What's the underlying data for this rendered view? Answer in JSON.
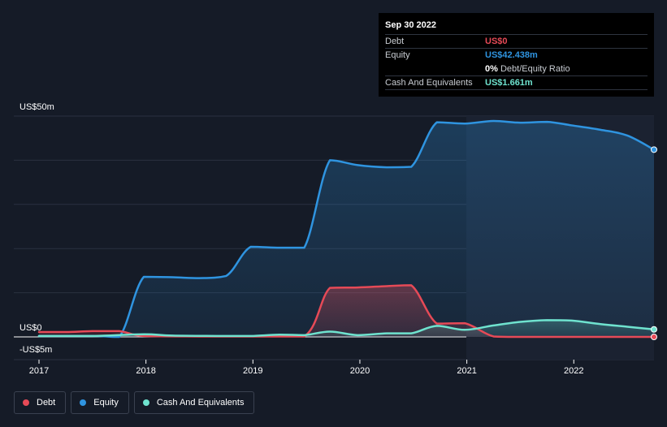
{
  "tooltip": {
    "date": "Sep 30 2022",
    "debt_label": "Debt",
    "debt_value": "US$0",
    "equity_label": "Equity",
    "equity_value": "US$42.438m",
    "ratio_value": "0%",
    "ratio_label": "Debt/Equity Ratio",
    "cash_label": "Cash And Equivalents",
    "cash_value": "US$1.661m"
  },
  "y_axis": {
    "top_label": "US$50m",
    "zero_label": "US$0",
    "bottom_label": "-US$5m"
  },
  "legend": [
    {
      "label": "Debt",
      "color": "#e64a57"
    },
    {
      "label": "Equity",
      "color": "#2f94e0"
    },
    {
      "label": "Cash And Equivalents",
      "color": "#6fe3cf"
    }
  ],
  "colors": {
    "debt": "#e64a57",
    "equity": "#2f94e0",
    "cash": "#6fe3cf",
    "background": "#151b27"
  },
  "chart_data": {
    "type": "area",
    "xlabel": "",
    "ylabel": "",
    "x_ticks": [
      "2017",
      "2018",
      "2019",
      "2020",
      "2021",
      "2022"
    ],
    "xlim": [
      2017.0,
      2022.75
    ],
    "ylim": [
      -5,
      50
    ],
    "grid": true,
    "legend_placement": "bottom-left",
    "series": [
      {
        "name": "Equity",
        "x": [
          2017.0,
          2017.5,
          2017.75,
          2017.98,
          2018.25,
          2018.5,
          2018.75,
          2018.98,
          2019.25,
          2019.48,
          2019.72,
          2019.98,
          2020.25,
          2020.48,
          2020.72,
          2020.98,
          2021.25,
          2021.5,
          2021.75,
          2021.98,
          2022.25,
          2022.5,
          2022.75
        ],
        "values": [
          0.2,
          0.2,
          0.0,
          13.6,
          13.5,
          13.3,
          13.8,
          20.4,
          20.2,
          20.2,
          40.0,
          38.9,
          38.4,
          38.5,
          48.6,
          48.3,
          48.9,
          48.5,
          48.7,
          47.9,
          46.9,
          45.6,
          42.4
        ]
      },
      {
        "name": "Debt",
        "x": [
          2017.0,
          2017.25,
          2017.5,
          2017.75,
          2017.98,
          2018.5,
          2019.0,
          2019.48,
          2019.72,
          2019.98,
          2020.25,
          2020.48,
          2020.72,
          2020.98,
          2021.25,
          2021.5,
          2022.0,
          2022.75
        ],
        "values": [
          1.1,
          1.1,
          1.3,
          1.3,
          0.2,
          0.1,
          0.1,
          0.1,
          11.1,
          11.2,
          11.5,
          11.7,
          3.0,
          3.1,
          0.1,
          0.0,
          0.0,
          0.0
        ]
      },
      {
        "name": "Cash And Equivalents",
        "x": [
          2017.0,
          2017.5,
          2017.98,
          2018.25,
          2018.75,
          2018.98,
          2019.25,
          2019.48,
          2019.72,
          2019.98,
          2020.25,
          2020.48,
          2020.72,
          2020.98,
          2021.25,
          2021.5,
          2021.75,
          2021.98,
          2022.25,
          2022.5,
          2022.75
        ],
        "values": [
          0.2,
          0.2,
          0.6,
          0.3,
          0.2,
          0.2,
          0.5,
          0.4,
          1.2,
          0.4,
          0.8,
          0.8,
          2.5,
          1.6,
          2.6,
          3.4,
          3.8,
          3.7,
          2.9,
          2.3,
          1.7
        ]
      }
    ]
  }
}
